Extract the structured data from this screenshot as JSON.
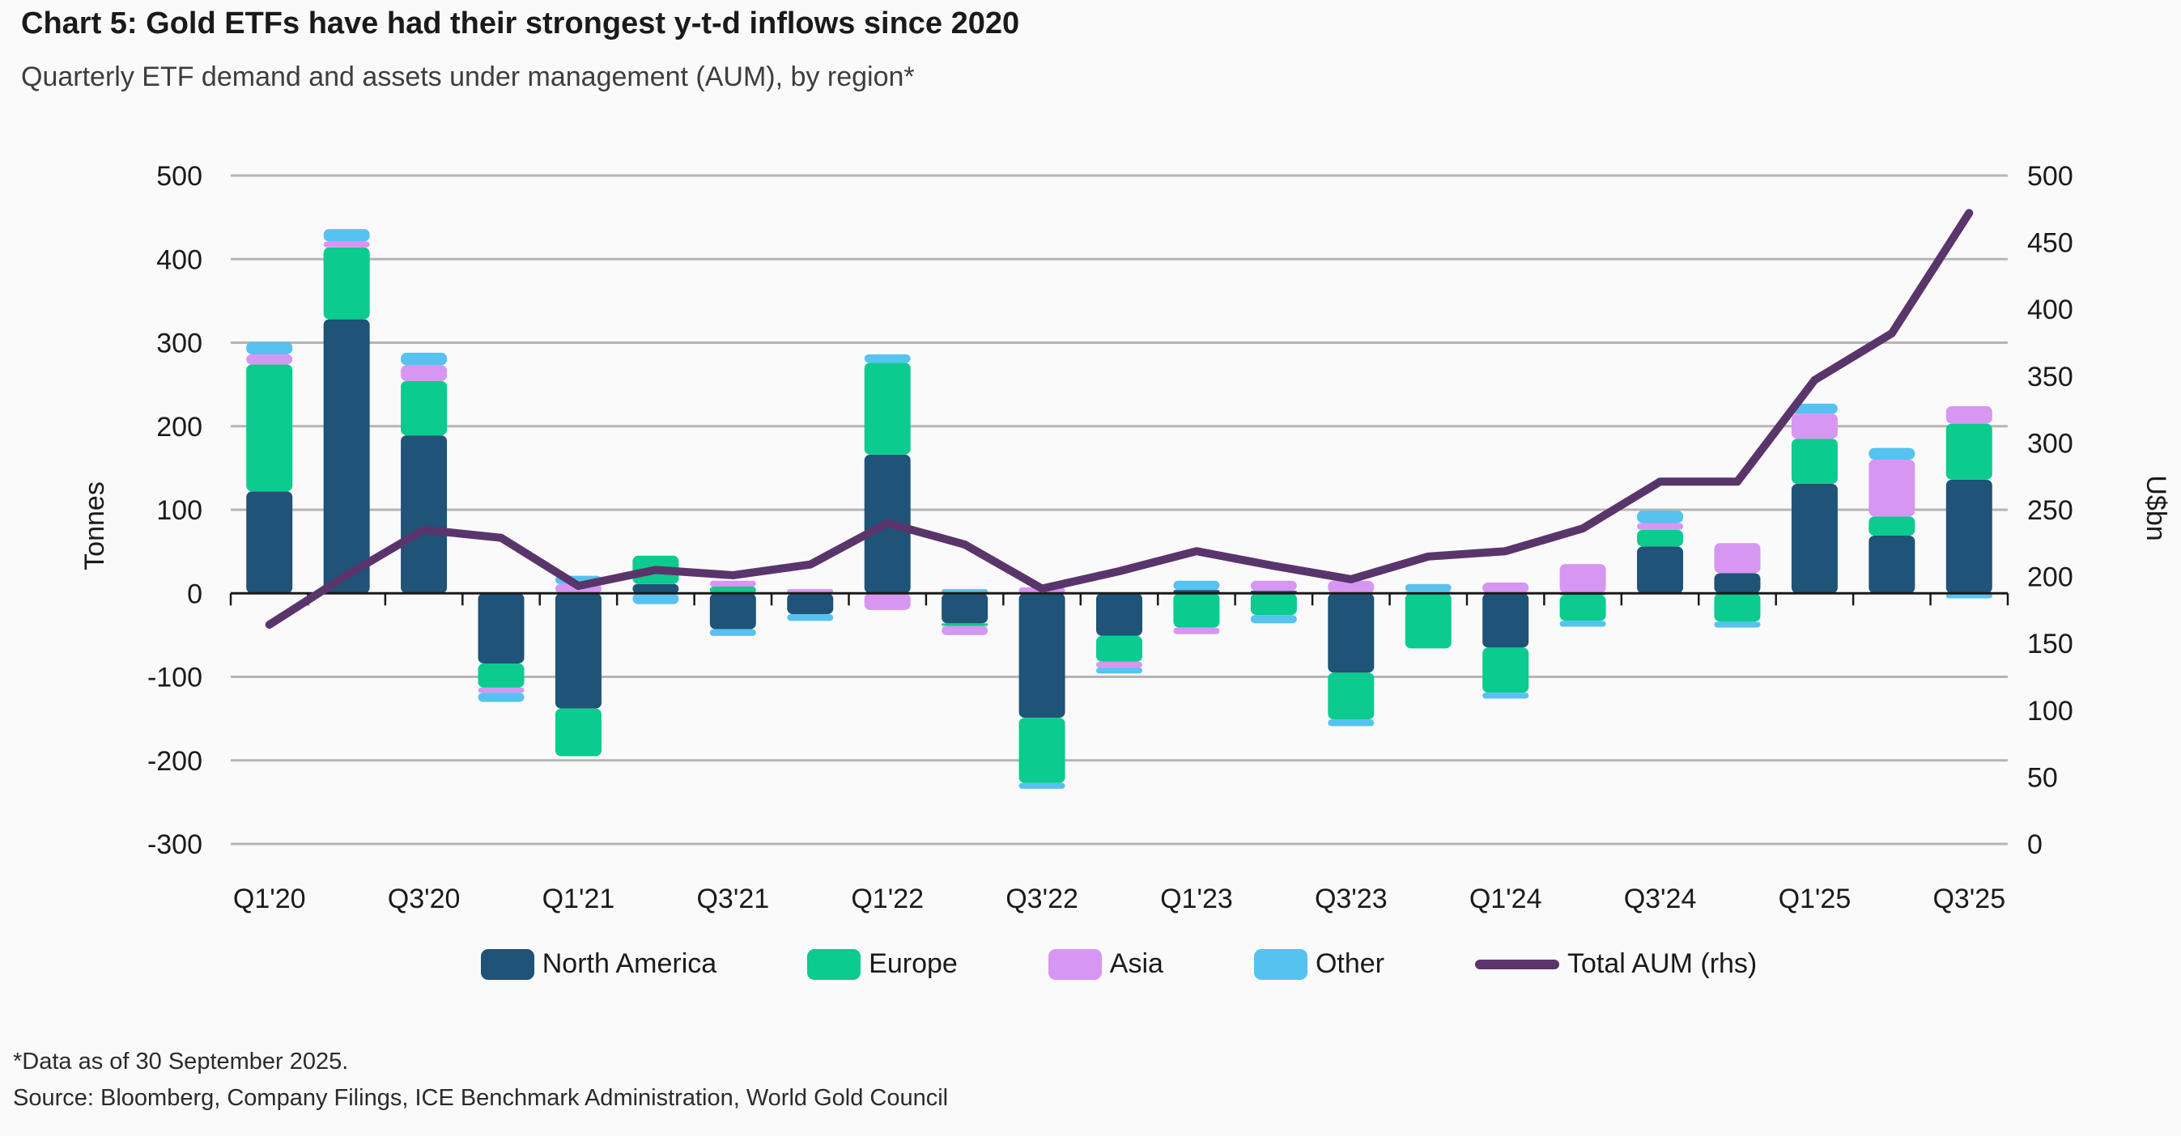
{
  "header": {
    "title": "Chart 5: Gold ETFs have had their strongest y-t-d inflows since 2020",
    "subtitle": "Quarterly ETF demand and assets under management (AUM), by region*"
  },
  "footnotes": {
    "line1": "*Data as of 30 September 2025.",
    "line2": "Source: Bloomberg, Company Filings, ICE Benchmark Administration, World Gold Council"
  },
  "chart_data": {
    "type": "bar",
    "subtype": "stacked-bar-with-line",
    "title": "Quarterly ETF demand and assets under management (AUM), by region",
    "categories": [
      "Q1'20",
      "Q2'20",
      "Q3'20",
      "Q4'20",
      "Q1'21",
      "Q2'21",
      "Q3'21",
      "Q4'21",
      "Q1'22",
      "Q2'22",
      "Q3'22",
      "Q4'22",
      "Q1'23",
      "Q2'23",
      "Q3'23",
      "Q4'23",
      "Q1'24",
      "Q2'24",
      "Q3'24",
      "Q4'24",
      "Q1'25",
      "Q2'25",
      "Q3'25"
    ],
    "series": [
      {
        "name": "North America",
        "color": "#1F5377",
        "values": [
          122,
          328,
          189,
          -84,
          -138,
          11,
          -43,
          -25,
          166,
          -36,
          -149,
          -51,
          4,
          3,
          -95,
          0,
          -65,
          -2,
          56,
          24,
          131,
          69,
          136
        ]
      },
      {
        "name": "Europe",
        "color": "#0BCB8E",
        "values": [
          152,
          86,
          65,
          -29,
          -57,
          34,
          8,
          0,
          110,
          -3,
          -78,
          -31,
          -41,
          -26,
          -56,
          -66,
          -54,
          -31,
          20,
          -34,
          54,
          23,
          67
        ]
      },
      {
        "name": "Asia",
        "color": "#D796F2",
        "values": [
          12,
          7,
          19,
          -6,
          11,
          0,
          7,
          5,
          -20,
          -11,
          7,
          -7,
          -8,
          12,
          15,
          2,
          13,
          35,
          8,
          36,
          30,
          68,
          21
        ]
      },
      {
        "name": "Other",
        "color": "#56C2F0",
        "values": [
          15,
          15,
          15,
          -11,
          10,
          -13,
          -8,
          -8,
          10,
          5,
          -7,
          -7,
          11,
          -10,
          -8,
          9,
          -7,
          -7,
          15,
          -7,
          12,
          14,
          -6
        ]
      }
    ],
    "line_series": {
      "name": "Total AUM (rhs)",
      "color": "#5A356B",
      "axis": "right",
      "values": [
        164,
        201,
        235,
        229,
        193,
        205,
        201,
        209,
        240,
        224,
        191,
        204,
        219,
        208,
        198,
        215,
        219,
        236,
        271,
        271,
        347,
        382,
        472
      ]
    },
    "left_axis": {
      "label": "Tonnes",
      "min": -300,
      "max": 500,
      "ticks": [
        500,
        400,
        300,
        200,
        100,
        0,
        -100,
        -200,
        -300
      ],
      "gridlines": [
        500,
        400,
        300,
        200,
        100,
        -100,
        -200,
        -300
      ]
    },
    "right_axis": {
      "label": "U$bn",
      "min": 0,
      "max": 500,
      "ticks": [
        500,
        450,
        400,
        350,
        300,
        250,
        200,
        150,
        100,
        50,
        0
      ]
    },
    "x_axis": {
      "label_every": 2
    },
    "colors": {
      "grid": "#B5B5B5",
      "axis": "#1A1A1A"
    },
    "grid": true,
    "legend_position": "bottom"
  }
}
